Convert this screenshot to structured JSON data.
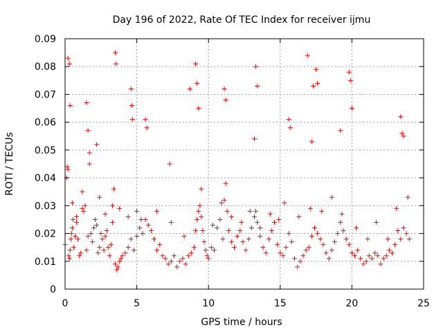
{
  "chart_data": {
    "type": "scatter",
    "title": "Day 196 of 2022, Rate Of TEC Index for receiver ijmu",
    "xlabel": "GPS time / hours",
    "ylabel": "ROTI / TECUs",
    "xlim": [
      0,
      25
    ],
    "ylim": [
      0,
      0.09
    ],
    "xticks": [
      0,
      5,
      10,
      15,
      20,
      25
    ],
    "xtick_labels": [
      "0",
      "5",
      "10",
      "15",
      "20",
      "25"
    ],
    "yticks": [
      0,
      0.01,
      0.02,
      0.03,
      0.04,
      0.05,
      0.06,
      0.07,
      0.08,
      0.09
    ],
    "ytick_labels": [
      "0",
      "0.01",
      "0.02",
      "0.03",
      "0.04",
      "0.05",
      "0.06",
      "0.07",
      "0.08",
      "0.09"
    ],
    "grid": true,
    "marker": "+",
    "series": [
      {
        "name": "ROTI",
        "color": "#ff0000",
        "x": [
          0.0,
          0.1,
          0.15,
          0.2,
          0.25,
          0.3,
          0.35,
          0.4,
          0.45,
          0.5,
          0.55,
          0.6,
          0.7,
          0.8,
          0.9,
          1.0,
          1.1,
          1.2,
          1.3,
          1.4,
          1.5,
          1.6,
          1.7,
          1.8,
          1.9,
          2.0,
          2.1,
          2.2,
          2.3,
          2.4,
          2.5,
          2.6,
          2.7,
          2.8,
          2.9,
          3.0,
          3.1,
          3.2,
          3.3,
          3.4,
          3.5,
          3.6,
          3.7,
          3.8,
          3.9,
          4.0,
          4.2,
          4.4,
          4.6,
          4.8,
          5.0,
          5.2,
          5.4,
          5.6,
          5.8,
          6.0,
          6.2,
          6.4,
          6.6,
          6.8,
          7.0,
          7.2,
          7.4,
          7.6,
          7.8,
          8.0,
          8.2,
          8.4,
          8.6,
          8.8,
          9.0,
          9.1,
          9.2,
          9.3,
          9.4,
          9.5,
          9.6,
          9.7,
          9.8,
          9.9,
          10.0,
          10.2,
          10.4,
          10.6,
          10.8,
          11.0,
          11.1,
          11.2,
          11.3,
          11.4,
          11.6,
          11.8,
          12.0,
          12.2,
          12.4,
          12.6,
          12.8,
          13.0,
          13.2,
          13.3,
          13.4,
          13.6,
          13.8,
          14.0,
          14.2,
          14.4,
          14.6,
          14.8,
          15.0,
          15.2,
          15.4,
          15.6,
          15.8,
          16.0,
          16.2,
          16.4,
          16.6,
          16.8,
          17.0,
          17.2,
          17.4,
          17.6,
          17.8,
          18.0,
          18.2,
          18.4,
          18.6,
          18.8,
          19.0,
          19.2,
          19.4,
          19.6,
          19.8,
          20.0,
          20.2,
          20.4,
          20.6,
          20.8,
          21.0,
          21.2,
          21.4,
          21.6,
          21.8,
          22.0,
          22.2,
          22.4,
          22.6,
          22.8,
          23.0,
          23.2,
          23.4,
          23.6,
          23.8,
          24.0,
          0.2,
          0.3,
          0.35,
          1.5,
          1.6,
          1.7,
          2.2,
          3.5,
          3.55,
          4.6,
          4.65,
          4.7,
          5.6,
          5.7,
          7.3,
          8.7,
          9.1,
          9.2,
          9.3,
          11.1,
          11.2,
          13.2,
          13.3,
          13.4,
          15.6,
          15.7,
          16.9,
          17.2,
          17.3,
          17.5,
          17.6,
          19.2,
          19.8,
          19.9,
          20.0,
          23.4,
          23.5,
          23.6,
          0.5,
          0.8,
          1.2,
          2.4,
          2.8,
          3.3,
          3.8,
          4.4,
          5.0,
          5.3,
          6.4,
          7.4,
          8.3,
          9.5,
          10.3,
          10.9,
          11.6,
          12.3,
          12.9,
          13.6,
          14.3,
          14.9,
          15.3,
          16.3,
          17.1,
          17.9,
          18.6,
          19.3,
          20.3,
          21.1,
          21.7,
          22.5,
          23.1,
          23.9
        ],
        "y": [
          0.016,
          0.04,
          0.044,
          0.043,
          0.012,
          0.011,
          0.014,
          0.018,
          0.02,
          0.022,
          0.025,
          0.015,
          0.019,
          0.024,
          0.018,
          0.012,
          0.013,
          0.035,
          0.028,
          0.03,
          0.014,
          0.019,
          0.045,
          0.02,
          0.017,
          0.022,
          0.025,
          0.023,
          0.013,
          0.015,
          0.02,
          0.018,
          0.014,
          0.019,
          0.021,
          0.015,
          0.012,
          0.016,
          0.03,
          0.036,
          0.009,
          0.007,
          0.008,
          0.01,
          0.011,
          0.012,
          0.013,
          0.015,
          0.018,
          0.014,
          0.019,
          0.022,
          0.02,
          0.025,
          0.023,
          0.021,
          0.018,
          0.014,
          0.016,
          0.012,
          0.011,
          0.009,
          0.01,
          0.012,
          0.008,
          0.01,
          0.011,
          0.009,
          0.012,
          0.013,
          0.015,
          0.021,
          0.025,
          0.028,
          0.03,
          0.026,
          0.021,
          0.017,
          0.014,
          0.012,
          0.011,
          0.015,
          0.014,
          0.022,
          0.025,
          0.018,
          0.032,
          0.038,
          0.028,
          0.021,
          0.017,
          0.015,
          0.019,
          0.021,
          0.017,
          0.014,
          0.018,
          0.022,
          0.026,
          0.028,
          0.024,
          0.019,
          0.015,
          0.013,
          0.018,
          0.021,
          0.024,
          0.016,
          0.013,
          0.012,
          0.015,
          0.02,
          0.017,
          0.011,
          0.008,
          0.01,
          0.012,
          0.014,
          0.015,
          0.019,
          0.022,
          0.02,
          0.018,
          0.016,
          0.013,
          0.011,
          0.014,
          0.017,
          0.02,
          0.024,
          0.021,
          0.018,
          0.016,
          0.013,
          0.012,
          0.014,
          0.011,
          0.009,
          0.01,
          0.012,
          0.011,
          0.013,
          0.012,
          0.009,
          0.011,
          0.012,
          0.014,
          0.013,
          0.016,
          0.021,
          0.018,
          0.022,
          0.02,
          0.018,
          0.083,
          0.081,
          0.066,
          0.067,
          0.057,
          0.049,
          0.052,
          0.085,
          0.081,
          0.072,
          0.066,
          0.061,
          0.061,
          0.058,
          0.045,
          0.072,
          0.081,
          0.074,
          0.065,
          0.072,
          0.068,
          0.054,
          0.08,
          0.073,
          0.061,
          0.058,
          0.084,
          0.053,
          0.073,
          0.079,
          0.074,
          0.057,
          0.078,
          0.075,
          0.065,
          0.062,
          0.056,
          0.055,
          0.031,
          0.026,
          0.029,
          0.033,
          0.027,
          0.024,
          0.029,
          0.026,
          0.028,
          0.025,
          0.028,
          0.024,
          0.019,
          0.036,
          0.023,
          0.031,
          0.026,
          0.024,
          0.028,
          0.022,
          0.027,
          0.025,
          0.031,
          0.026,
          0.029,
          0.028,
          0.033,
          0.027,
          0.022,
          0.018,
          0.024,
          0.018,
          0.029,
          0.033
        ]
      }
    ]
  }
}
